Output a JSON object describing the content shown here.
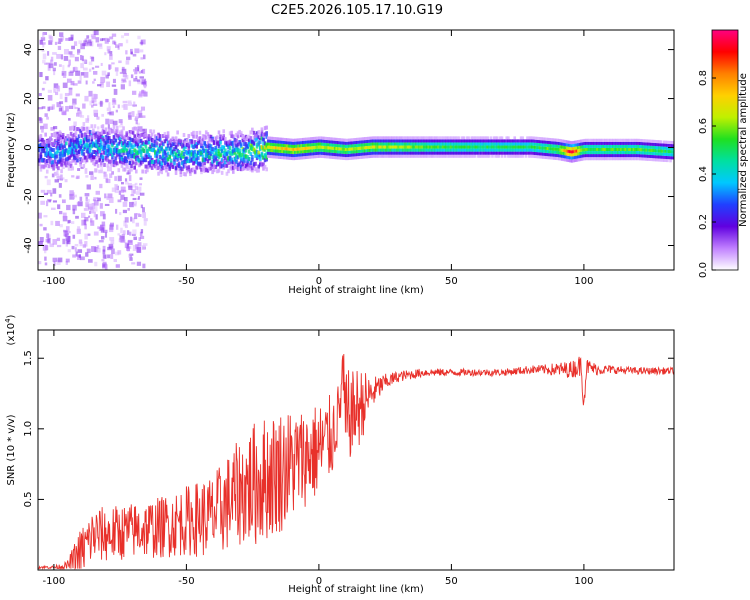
{
  "title": "C2E5.2026.105.17.10.G19",
  "chart_data": [
    {
      "type": "heatmap",
      "xlabel": "Height of straight line (km)",
      "ylabel": "Frequency (Hz)",
      "xlim": [
        -106,
        134
      ],
      "ylim": [
        -50,
        48
      ],
      "xticks": [
        -100,
        -50,
        0,
        50,
        100
      ],
      "yticks": [
        -40,
        -20,
        0,
        20,
        40
      ],
      "colorbar": {
        "label": "Normalized spectral amplitude",
        "range": [
          0,
          1
        ],
        "ticks": [
          0.0,
          0.2,
          0.4,
          0.6,
          0.8
        ],
        "tick_labels": [
          "0.0",
          "0.2",
          "0.4",
          "0.6",
          "0.8"
        ],
        "colors": [
          "#ffffff",
          "#c080ff",
          "#6000e0",
          "#2040ff",
          "#00c8ff",
          "#00e0a0",
          "#20e020",
          "#c0f000",
          "#ffd000",
          "#ff8000",
          "#ff0000",
          "#ff0080"
        ]
      },
      "ridge": {
        "x": [
          -100,
          -90,
          -80,
          -70,
          -60,
          -50,
          -40,
          -30,
          -20,
          -10,
          0,
          10,
          20,
          40,
          60,
          80,
          90,
          95,
          100,
          120,
          134
        ],
        "frequency": [
          -2,
          1,
          0,
          -1,
          -2,
          -3,
          -2,
          -2,
          0,
          -1,
          0,
          -1,
          0,
          0,
          0,
          0,
          -1,
          -2,
          -1,
          -1,
          -2
        ],
        "amplitude": [
          0.35,
          0.4,
          0.42,
          0.45,
          0.45,
          0.45,
          0.45,
          0.5,
          0.7,
          0.72,
          0.65,
          0.6,
          0.65,
          0.55,
          0.5,
          0.5,
          0.6,
          0.95,
          0.55,
          0.55,
          0.5
        ]
      }
    },
    {
      "type": "line",
      "xlabel": "Height of straight line (km)",
      "ylabel": "SNR (10 * v/v)",
      "yscale_note": "(x10",
      "yscale_exp": "4",
      "yscale_close": ")",
      "xlim": [
        -106,
        134
      ],
      "ylim": [
        0.0,
        1.7
      ],
      "xticks": [
        -100,
        -50,
        0,
        50,
        100
      ],
      "yticks": [
        0.5,
        1.0,
        1.5
      ],
      "ytick_labels": [
        "0.5",
        "1.0",
        "1.5"
      ],
      "series": [
        {
          "name": "SNR",
          "color": "#e8302a",
          "envelope_x": [
            -106,
            -100,
            -95,
            -90,
            -85,
            -80,
            -70,
            -60,
            -50,
            -40,
            -30,
            -25,
            -20,
            -15,
            -10,
            -5,
            0,
            5,
            8,
            9,
            10,
            12,
            15,
            20,
            25,
            30,
            40,
            50,
            60,
            70,
            80,
            85,
            90,
            95,
            99,
            100,
            101,
            105,
            110,
            120,
            134
          ],
          "envelope_y": [
            0.02,
            0.02,
            0.03,
            0.12,
            0.25,
            0.25,
            0.28,
            0.3,
            0.35,
            0.38,
            0.55,
            0.6,
            0.65,
            0.7,
            0.75,
            0.8,
            0.85,
            0.95,
            1.15,
            1.45,
            1.0,
            1.1,
            1.15,
            1.25,
            1.33,
            1.37,
            1.4,
            1.4,
            1.4,
            1.4,
            1.42,
            1.42,
            1.42,
            1.42,
            1.45,
            1.2,
            1.44,
            1.42,
            1.42,
            1.41,
            1.41
          ],
          "noise_amp": [
            0.01,
            0.01,
            0.03,
            0.18,
            0.2,
            0.2,
            0.2,
            0.22,
            0.25,
            0.3,
            0.38,
            0.45,
            0.45,
            0.45,
            0.4,
            0.35,
            0.35,
            0.3,
            0.2,
            0.15,
            0.45,
            0.3,
            0.3,
            0.12,
            0.06,
            0.04,
            0.03,
            0.025,
            0.025,
            0.025,
            0.03,
            0.035,
            0.05,
            0.06,
            0.08,
            0.1,
            0.06,
            0.04,
            0.03,
            0.025,
            0.025
          ]
        }
      ]
    }
  ]
}
